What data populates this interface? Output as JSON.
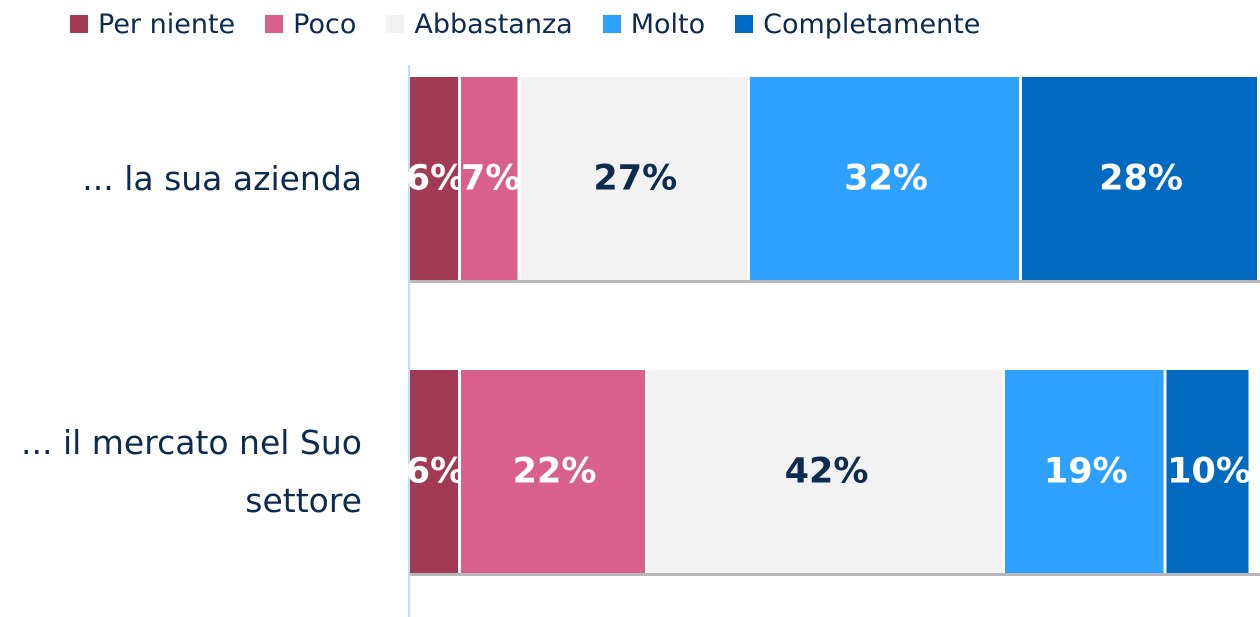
{
  "chart_data": {
    "type": "stacked-bar-horizontal",
    "categories": [
      "... la sua azienda",
      "... il mercato nel Suo settore"
    ],
    "xlim": [
      0,
      100
    ],
    "legend": "top",
    "series": [
      {
        "name": "Per niente",
        "color": "#a33a55",
        "values": [
          6,
          6
        ],
        "value_labels": [
          "6%",
          "6%"
        ]
      },
      {
        "name": "Poco",
        "color": "#d9608a",
        "values": [
          7,
          22
        ],
        "value_labels": [
          "7%",
          "22%"
        ]
      },
      {
        "name": "Abbastanza",
        "color": "#f2f2f2",
        "values": [
          27,
          42
        ],
        "value_labels": [
          "27%",
          "42%"
        ]
      },
      {
        "name": "Molto",
        "color": "#2ea1ff",
        "values": [
          32,
          19
        ],
        "value_labels": [
          "32%",
          "19%"
        ]
      },
      {
        "name": "Completamente",
        "color": "#0069c0",
        "values": [
          28,
          10
        ],
        "value_labels": [
          "28%",
          "10%"
        ]
      }
    ]
  }
}
